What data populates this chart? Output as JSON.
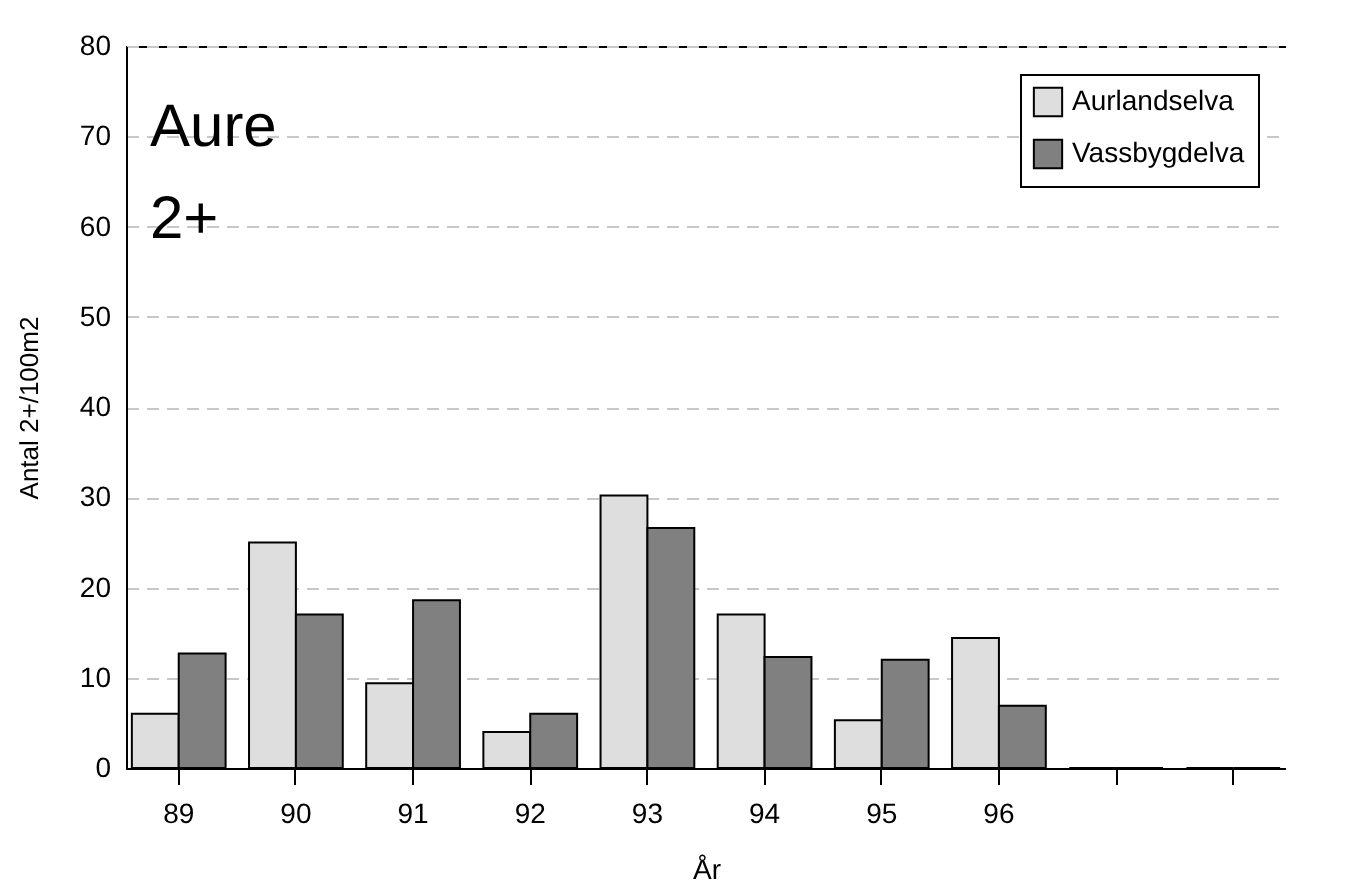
{
  "chart_data": {
    "type": "bar",
    "title": "Aure",
    "subtitle": "2+",
    "xlabel": "År",
    "ylabel": "Antal 2+/100m2",
    "categories": [
      "89",
      "90",
      "91",
      "92",
      "93",
      "94",
      "95",
      "96",
      null,
      null
    ],
    "series": [
      {
        "name": "Aurlandselva",
        "color": "#dedede",
        "values": [
          6.0,
          25.0,
          9.4,
          4.0,
          30.2,
          17.0,
          5.3,
          14.4,
          0,
          0
        ]
      },
      {
        "name": "Vassbygdelva",
        "color": "#808080",
        "values": [
          12.7,
          17.0,
          18.6,
          6.0,
          26.6,
          12.3,
          12.0,
          6.9,
          0,
          0
        ]
      }
    ],
    "ylim": [
      0,
      80
    ],
    "yticks": [
      0,
      10,
      20,
      30,
      40,
      50,
      60,
      70,
      80
    ],
    "grid": "y",
    "legend": "top right"
  }
}
